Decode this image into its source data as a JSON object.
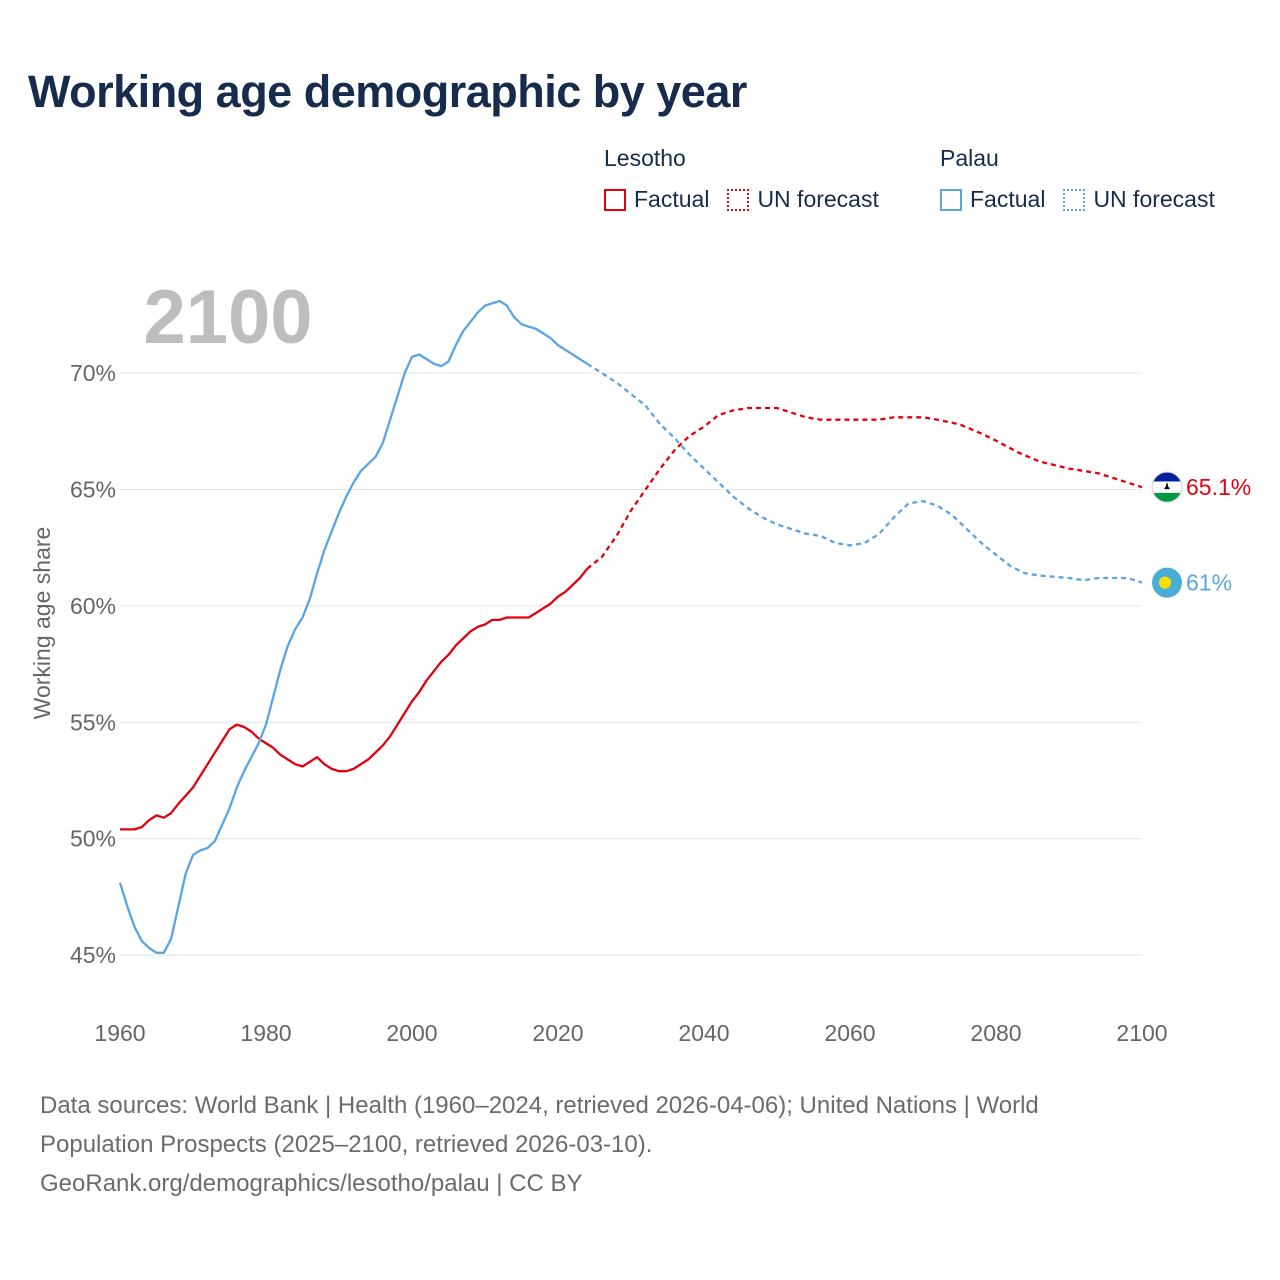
{
  "title": "Working age demographic by year",
  "legend": {
    "groups": [
      {
        "name": "Lesotho",
        "color": "#e3000f",
        "factual_label": "Factual",
        "forecast_label": "UN forecast"
      },
      {
        "name": "Palau",
        "color": "#5aa4e6",
        "factual_label": "Factual",
        "forecast_label": "UN forecast"
      }
    ]
  },
  "chart_data": {
    "type": "line",
    "year_watermark": "2100",
    "ylabel": "Working age share",
    "xlim": [
      1960,
      2100
    ],
    "ylim": [
      43.5,
      74
    ],
    "x_ticks": [
      "1960",
      "1980",
      "2000",
      "2020",
      "2040",
      "2060",
      "2080",
      "2100"
    ],
    "y_ticks": [
      "45%",
      "50%",
      "55%",
      "60%",
      "65%",
      "70%"
    ],
    "y_tick_values": [
      45,
      50,
      55,
      60,
      65,
      70
    ],
    "factual_end_year": 2024,
    "series": [
      {
        "name": "Lesotho",
        "color": "#e3000f",
        "end_label": "65.1%",
        "points": [
          [
            1960,
            50.4
          ],
          [
            1962,
            50.4
          ],
          [
            1963,
            50.5
          ],
          [
            1964,
            50.8
          ],
          [
            1965,
            51
          ],
          [
            1966,
            50.9
          ],
          [
            1967,
            51.1
          ],
          [
            1968,
            51.5
          ],
          [
            1970,
            52.2
          ],
          [
            1972,
            53.2
          ],
          [
            1974,
            54.2
          ],
          [
            1975,
            54.7
          ],
          [
            1976,
            54.9
          ],
          [
            1977,
            54.8
          ],
          [
            1978,
            54.6
          ],
          [
            1979,
            54.3
          ],
          [
            1981,
            53.9
          ],
          [
            1982,
            53.6
          ],
          [
            1984,
            53.2
          ],
          [
            1985,
            53.1
          ],
          [
            1986,
            53.3
          ],
          [
            1987,
            53.5
          ],
          [
            1988,
            53.2
          ],
          [
            1989,
            53
          ],
          [
            1990,
            52.9
          ],
          [
            1991,
            52.9
          ],
          [
            1992,
            53
          ],
          [
            1994,
            53.4
          ],
          [
            1996,
            54
          ],
          [
            1997,
            54.4
          ],
          [
            1999,
            55.4
          ],
          [
            2000,
            55.9
          ],
          [
            2001,
            56.3
          ],
          [
            2002,
            56.8
          ],
          [
            2004,
            57.6
          ],
          [
            2005,
            57.9
          ],
          [
            2006,
            58.3
          ],
          [
            2008,
            58.9
          ],
          [
            2009,
            59.1
          ],
          [
            2010,
            59.2
          ],
          [
            2011,
            59.4
          ],
          [
            2012,
            59.4
          ],
          [
            2013,
            59.5
          ],
          [
            2016,
            59.5
          ],
          [
            2017,
            59.7
          ],
          [
            2019,
            60.1
          ],
          [
            2020,
            60.4
          ],
          [
            2021,
            60.6
          ],
          [
            2022,
            60.9
          ],
          [
            2023,
            61.2
          ],
          [
            2024,
            61.6
          ],
          [
            2026,
            62.1
          ],
          [
            2028,
            63
          ],
          [
            2030,
            64.1
          ],
          [
            2032,
            65
          ],
          [
            2034,
            65.9
          ],
          [
            2036,
            66.7
          ],
          [
            2038,
            67.3
          ],
          [
            2040,
            67.7
          ],
          [
            2042,
            68.2
          ],
          [
            2044,
            68.4
          ],
          [
            2046,
            68.5
          ],
          [
            2050,
            68.5
          ],
          [
            2052,
            68.3
          ],
          [
            2054,
            68.1
          ],
          [
            2056,
            68
          ],
          [
            2060,
            68
          ],
          [
            2064,
            68
          ],
          [
            2066,
            68.1
          ],
          [
            2070,
            68.1
          ],
          [
            2072,
            68
          ],
          [
            2075,
            67.8
          ],
          [
            2078,
            67.4
          ],
          [
            2080,
            67.1
          ],
          [
            2083,
            66.6
          ],
          [
            2086,
            66.2
          ],
          [
            2090,
            65.9
          ],
          [
            2094,
            65.7
          ],
          [
            2098,
            65.3
          ],
          [
            2100,
            65.1
          ]
        ]
      },
      {
        "name": "Palau",
        "color": "#5aa4e6",
        "end_label": "61%",
        "points": [
          [
            1960,
            48.1
          ],
          [
            1961,
            47.1
          ],
          [
            1962,
            46.2
          ],
          [
            1963,
            45.6
          ],
          [
            1964,
            45.3
          ],
          [
            1965,
            45.1
          ],
          [
            1966,
            45.1
          ],
          [
            1967,
            45.7
          ],
          [
            1968,
            47.1
          ],
          [
            1969,
            48.5
          ],
          [
            1970,
            49.3
          ],
          [
            1971,
            49.5
          ],
          [
            1972,
            49.6
          ],
          [
            1973,
            49.9
          ],
          [
            1974,
            50.6
          ],
          [
            1975,
            51.3
          ],
          [
            1976,
            52.2
          ],
          [
            1977,
            52.9
          ],
          [
            1978,
            53.5
          ],
          [
            1979,
            54.1
          ],
          [
            1980,
            54.9
          ],
          [
            1981,
            56.1
          ],
          [
            1982,
            57.3
          ],
          [
            1983,
            58.3
          ],
          [
            1984,
            59
          ],
          [
            1985,
            59.5
          ],
          [
            1986,
            60.3
          ],
          [
            1987,
            61.4
          ],
          [
            1988,
            62.4
          ],
          [
            1989,
            63.2
          ],
          [
            1990,
            64
          ],
          [
            1991,
            64.7
          ],
          [
            1992,
            65.3
          ],
          [
            1993,
            65.8
          ],
          [
            1994,
            66.1
          ],
          [
            1995,
            66.4
          ],
          [
            1996,
            67
          ],
          [
            1997,
            68
          ],
          [
            1998,
            69
          ],
          [
            1999,
            70
          ],
          [
            2000,
            70.7
          ],
          [
            2001,
            70.8
          ],
          [
            2002,
            70.6
          ],
          [
            2003,
            70.4
          ],
          [
            2004,
            70.3
          ],
          [
            2005,
            70.5
          ],
          [
            2006,
            71.2
          ],
          [
            2007,
            71.8
          ],
          [
            2008,
            72.2
          ],
          [
            2009,
            72.6
          ],
          [
            2010,
            72.9
          ],
          [
            2011,
            73
          ],
          [
            2012,
            73.1
          ],
          [
            2013,
            72.9
          ],
          [
            2014,
            72.4
          ],
          [
            2015,
            72.1
          ],
          [
            2016,
            72
          ],
          [
            2017,
            71.9
          ],
          [
            2018,
            71.7
          ],
          [
            2019,
            71.5
          ],
          [
            2020,
            71.2
          ],
          [
            2022,
            70.8
          ],
          [
            2024,
            70.4
          ],
          [
            2026,
            70
          ],
          [
            2028,
            69.6
          ],
          [
            2030,
            69.1
          ],
          [
            2032,
            68.6
          ],
          [
            2034,
            67.8
          ],
          [
            2036,
            67.2
          ],
          [
            2038,
            66.5
          ],
          [
            2040,
            65.9
          ],
          [
            2042,
            65.3
          ],
          [
            2044,
            64.7
          ],
          [
            2046,
            64.2
          ],
          [
            2048,
            63.8
          ],
          [
            2050,
            63.5
          ],
          [
            2052,
            63.3
          ],
          [
            2054,
            63.1
          ],
          [
            2056,
            63
          ],
          [
            2058,
            62.7
          ],
          [
            2060,
            62.6
          ],
          [
            2062,
            62.7
          ],
          [
            2064,
            63.1
          ],
          [
            2066,
            63.8
          ],
          [
            2068,
            64.4
          ],
          [
            2070,
            64.5
          ],
          [
            2072,
            64.3
          ],
          [
            2074,
            63.9
          ],
          [
            2076,
            63.3
          ],
          [
            2078,
            62.7
          ],
          [
            2080,
            62.2
          ],
          [
            2082,
            61.7
          ],
          [
            2084,
            61.4
          ],
          [
            2086,
            61.3
          ],
          [
            2090,
            61.2
          ],
          [
            2092,
            61.1
          ],
          [
            2094,
            61.2
          ],
          [
            2098,
            61.2
          ],
          [
            2100,
            61
          ]
        ]
      }
    ]
  },
  "footer": {
    "line1": "Data sources: World Bank | Health (1960–2024, retrieved 2026-04-06); United Nations | World",
    "line2": "Population Prospects (2025–2100, retrieved 2026-03-10).",
    "line3": "GeoRank.org/demographics/lesotho/palau | CC BY"
  }
}
